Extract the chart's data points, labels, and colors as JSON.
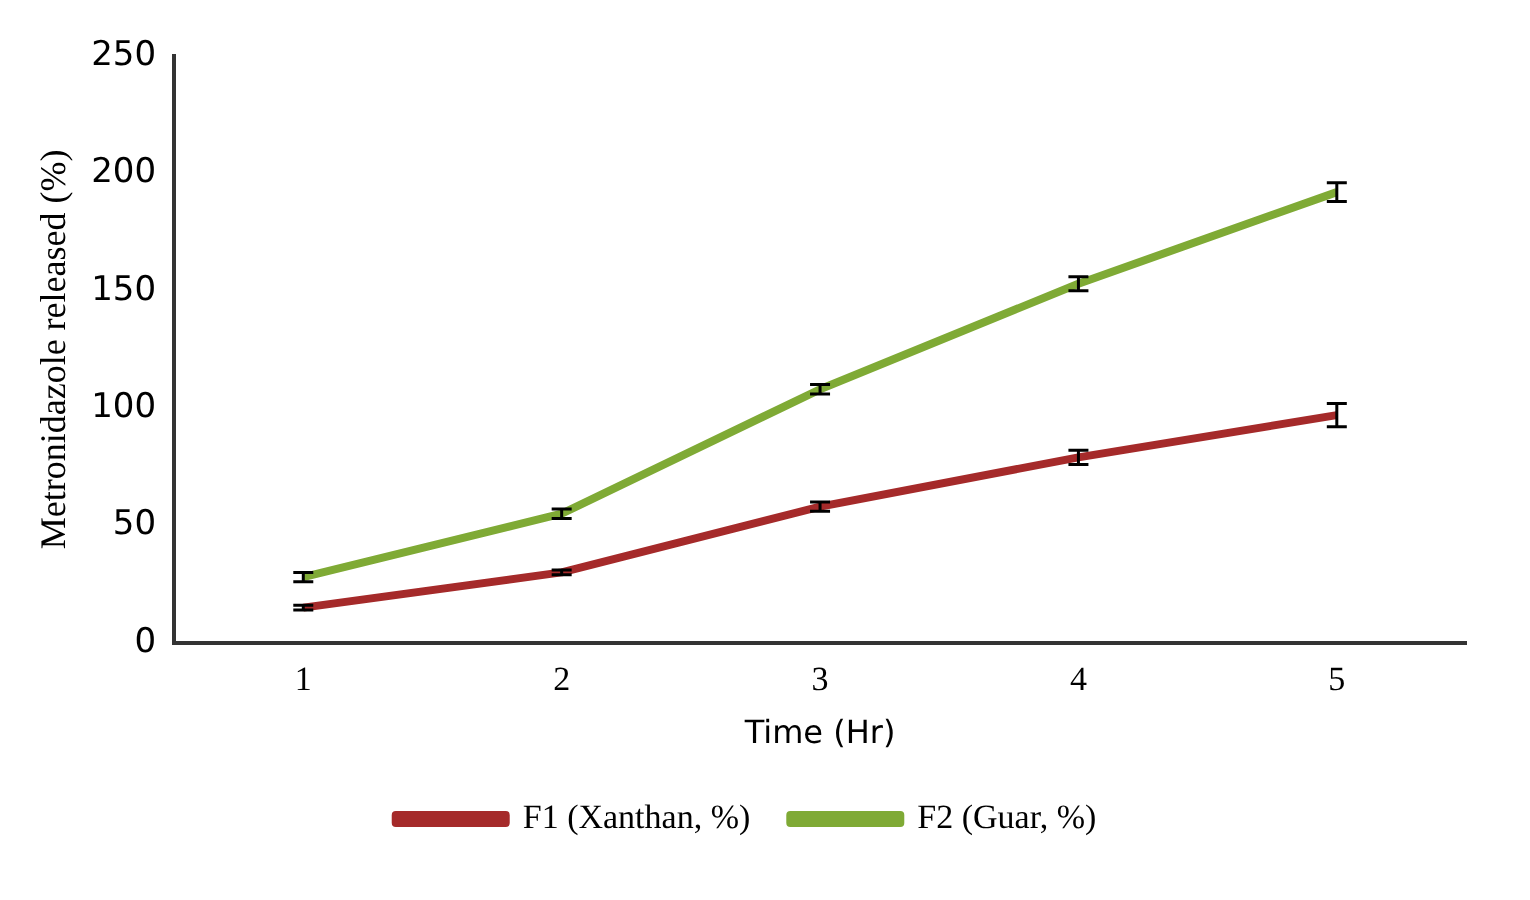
{
  "chart_data": {
    "type": "line",
    "xlabel": "Time (Hr)",
    "ylabel": "Metronidazole released (%)",
    "categories": [
      "1",
      "2",
      "3",
      "4",
      "5"
    ],
    "series": [
      {
        "name": "F1 (Xanthan, %)",
        "color": "#a52a2a",
        "values": [
          15,
          30,
          58,
          79,
          97
        ],
        "errors": [
          1,
          1,
          2,
          3,
          5
        ]
      },
      {
        "name": "F2 (Guar, %)",
        "color": "#7faa35",
        "values": [
          28,
          55,
          108,
          153,
          192
        ],
        "errors": [
          2,
          2,
          2,
          3,
          4
        ]
      }
    ],
    "ylim": [
      0,
      250
    ],
    "yticks": [
      0,
      50,
      100,
      150,
      200,
      250
    ],
    "grid": false,
    "legend": "bottom",
    "marker": "none",
    "line_style": "solid"
  }
}
